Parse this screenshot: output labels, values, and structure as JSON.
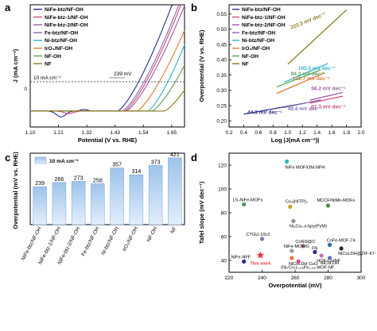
{
  "colors": {
    "NiFe-btz/NF-OH": "#2b2b8c",
    "NiFe-btz-1/NF-OH": "#d14b7a",
    "NiFe-btz-2/NF-OH": "#9b5aa8",
    "Fe-btz/NF-OH": "#7f6fb5",
    "Ni-btz/NF-OH": "#2fb4c4",
    "IrO2/NF-OH": "#e07b39",
    "NF-OH": "#5aa15a",
    "NF": "#8a7a1a",
    "bar_top": "#9ec3ea",
    "bar_bottom": "#e3eefb",
    "star": "#e53935"
  },
  "panels": {
    "a": "a",
    "b": "b",
    "c": "c",
    "d": "d"
  },
  "chart_data": [
    {
      "type": "line",
      "panel": "a",
      "xlabel": "Potential (V vs. RHE)",
      "ylabel": "J (mA cm⁻²)",
      "xlim": [
        1.1,
        1.7
      ],
      "ylim": [
        -60,
        400
      ],
      "xticks": [
        "1.10",
        "1.21",
        "1.32",
        "1.43",
        "1.54",
        "1.65"
      ],
      "yticks": [
        "0"
      ],
      "annotations": [
        "10 mA cm⁻²",
        "239 mV"
      ],
      "legend_position": "top-left",
      "series": [
        {
          "name": "NiFe-btz/NF-OH",
          "onset": 1.44,
          "scale": 0.0025
        },
        {
          "name": "NiFe-btz-1/NF-OH",
          "onset": 1.466,
          "scale": 0.0026
        },
        {
          "name": "NiFe-btz-2/NF-OH",
          "onset": 1.473,
          "scale": 0.0027
        },
        {
          "name": "Fe-btz/NF-OH",
          "onset": 1.458,
          "scale": 0.0026
        },
        {
          "name": "Ni-btz/NF-OH",
          "onset": 1.557,
          "scale": 0.0024
        },
        {
          "name": "IrO₂/NF-OH",
          "onset": 1.514,
          "scale": 0.0027
        },
        {
          "name": "NF-OH",
          "onset": 1.573,
          "scale": 0.0028
        },
        {
          "name": "NF",
          "onset": 1.621,
          "scale": 0.0031
        }
      ]
    },
    {
      "type": "line",
      "panel": "b",
      "xlabel": "Log |J(mA cm⁻²)|",
      "ylabel": "Overpotential (V vs. RHE)",
      "xlim": [
        0.2,
        2.0
      ],
      "ylim": [
        0.18,
        0.58
      ],
      "xticks": [
        "0.2",
        "0.4",
        "0.6",
        "0.8",
        "1.0",
        "1.2",
        "1.4",
        "1.6",
        "1.8",
        "2.0"
      ],
      "yticks": [
        "0.20",
        "0.25",
        "0.30",
        "0.35",
        "0.40",
        "0.45",
        "0.50",
        "0.55"
      ],
      "legend_position": "top-left",
      "series": [
        {
          "name": "NiFe-btz/NF-OH",
          "slope_label": "44.3 mV dec⁻¹",
          "x": [
            0.4,
            1.25
          ],
          "y": [
            0.222,
            0.259
          ]
        },
        {
          "name": "NiFe-btz-1/NF-OH",
          "slope_label": "51.7 mV dec⁻¹",
          "x": [
            1.3,
            1.75
          ],
          "y": [
            0.258,
            0.281
          ]
        },
        {
          "name": "NiFe-btz-2/NF-OH",
          "slope_label": "56.2 mV dec⁻¹",
          "x": [
            1.3,
            1.75
          ],
          "y": [
            0.268,
            0.293
          ]
        },
        {
          "name": "Fe-btz/NF-OH",
          "slope_label": "49.4 mV dec⁻¹",
          "x": [
            0.95,
            1.45
          ],
          "y": [
            0.244,
            0.269
          ]
        },
        {
          "name": "Ni-btz/NF-OH",
          "slope_label": "103.5 mV dec⁻¹",
          "x": [
            0.95,
            1.55
          ],
          "y": [
            0.326,
            0.388
          ]
        },
        {
          "name": "IrO₂/NF-OH",
          "slope_label": "102.7 mV dec⁻¹",
          "x": [
            0.85,
            1.5
          ],
          "y": [
            0.29,
            0.357
          ]
        },
        {
          "name": "NF-OH",
          "slope_label": "94.3 mV dec⁻¹",
          "x": [
            0.85,
            1.45
          ],
          "y": [
            0.311,
            0.367
          ]
        },
        {
          "name": "NF",
          "slope_label": "222.3 mV dec⁻¹",
          "x": [
            1.0,
            1.8
          ],
          "y": [
            0.385,
            0.563
          ]
        }
      ]
    },
    {
      "type": "bar",
      "panel": "c",
      "ylabel": "Overpotential (mV vs. RHE)",
      "legend": "10 mA cm⁻²",
      "categories": [
        "NiFe-btz/NF-OH",
        "NiFe-btz-1/NF-OH",
        "NiFe-btz-2/NF-OH",
        "Fe-btz/NF-OH",
        "Ni-btz/NF-OH",
        "IrO₂/NF-OH",
        "NF-OH",
        "NF"
      ],
      "values": [
        239,
        266,
        273,
        258,
        357,
        314,
        373,
        421
      ],
      "value_labels": [
        "239",
        "266",
        "273",
        "258",
        "357",
        "314",
        "373",
        "421"
      ],
      "ylim": [
        0,
        450
      ]
    },
    {
      "type": "scatter",
      "panel": "d",
      "xlabel": "Overpotential (mV)",
      "ylabel": "Tafel slope (mV dec⁻¹)",
      "xlim": [
        220,
        300
      ],
      "ylim": [
        30,
        130
      ],
      "xticks": [
        "220",
        "240",
        "260",
        "280",
        "300"
      ],
      "yticks": [
        "40",
        "60",
        "80",
        "100",
        "120"
      ],
      "points": [
        {
          "label": "NiFe MOF/OM-NFH",
          "x": 255,
          "y": 123,
          "color": "#2fb4c4"
        },
        {
          "label": "LS-NiFe-MOFs",
          "x": 229,
          "y": 87,
          "color": "#4a9a6a"
        },
        {
          "label": "Co₃(HITP)₂",
          "x": 257,
          "y": 85,
          "color": "#c8a020"
        },
        {
          "label": "Ni₅Co₁-x-bpy(PyM)",
          "x": 259,
          "y": 73,
          "color": "#a08aa0"
        },
        {
          "label": "MCCF/NiMn-MOFs",
          "x": 280,
          "y": 86,
          "color": "#4a8a4a"
        },
        {
          "label": "CTGU-10c2",
          "x": 240,
          "y": 58,
          "color": "#8a6fb0"
        },
        {
          "label": "CoNi3@C",
          "x": 265,
          "y": 52,
          "color": "#b07a7a"
        },
        {
          "label": "CoFe-MOF-74",
          "x": 281,
          "y": 53,
          "color": "#2b6fb0"
        },
        {
          "label": "NiFe-MOF/G",
          "x": 258,
          "y": 48,
          "color": "#9a9a9a"
        },
        {
          "label": "FN",
          "x": 272,
          "y": 47,
          "color": "#2b2b8c"
        },
        {
          "label": "HOF-Co/NF",
          "x": 276,
          "y": 44,
          "color": "#c07ab0"
        },
        {
          "label": "NiCoLDH",
          "x": 281,
          "y": 42,
          "color": "#6a6ac0"
        },
        {
          "label": "NiCoLDH@ZIF-67-Vₒ/NF",
          "x": 288,
          "y": 50,
          "color": "#2b2b2b"
        },
        {
          "label": "NiCoLDH CuO",
          "x": 258,
          "y": 42,
          "color": "#e07b39"
        },
        {
          "label": "NiFe-NFF",
          "x": 229,
          "y": 39,
          "color": "#2b2b8c"
        },
        {
          "label": "(Ni₂Co₁)₀.₉₅Fe₀.₀₅-MOF-NF",
          "x": 262,
          "y": 39,
          "color": "#d14b7a"
        }
      ],
      "this_work": {
        "label": "This work",
        "x": 239,
        "y": 44.3
      }
    }
  ]
}
